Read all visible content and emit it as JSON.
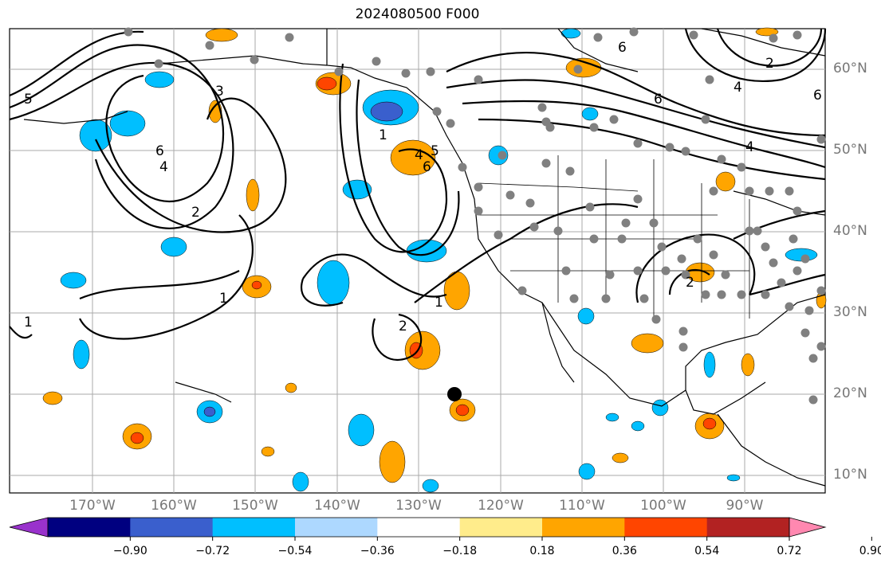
{
  "title": "2024080500 F000",
  "map": {
    "lon_labels": [
      "170°W",
      "160°W",
      "150°W",
      "140°W",
      "130°W",
      "120°W",
      "110°W",
      "100°W",
      "90°W"
    ],
    "lat_labels": [
      "60°N",
      "50°N",
      "40°N",
      "30°N",
      "20°N",
      "10°N"
    ],
    "grid_on": true,
    "contour_labels": [
      "6",
      "5",
      "4",
      "3",
      "2",
      "1"
    ],
    "marker": {
      "type": "black-dot",
      "lat": 20.0,
      "lon": -126.0
    }
  },
  "colorbar": {
    "ticks": [
      "−0.90",
      "−0.72",
      "−0.54",
      "−0.36",
      "−0.18",
      "0.18",
      "0.36",
      "0.54",
      "0.72",
      "0.90"
    ],
    "colors": [
      "#9932cc",
      "#000080",
      "#3a5fcd",
      "#00bfff",
      "#add8ff",
      "#ffffff",
      "#ffec8b",
      "#ffa500",
      "#ff4500",
      "#b22222",
      "#ff88b0"
    ]
  }
}
